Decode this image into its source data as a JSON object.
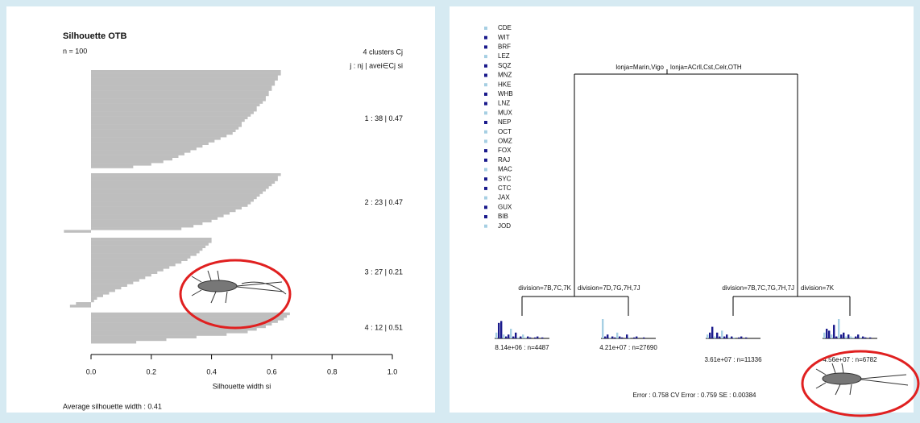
{
  "chart_data": [
    {
      "type": "silhouette",
      "title": "Silhouette OTB",
      "subtitle": "n = 100",
      "header": [
        "4  clusters  Cj",
        "j :  nj | avei∈Cj  si"
      ],
      "xlabel": "Silhouette width si",
      "footer": "Average silhouette width : 0.41",
      "color": "#bebebe",
      "xlim": [
        0,
        1
      ],
      "xticks": [
        {
          "value": 0,
          "label": "0.0"
        },
        {
          "value": 0.2,
          "label": "0.2"
        },
        {
          "value": 0.4,
          "label": "0.4"
        },
        {
          "value": 0.6,
          "label": "0.6"
        },
        {
          "value": 0.8,
          "label": "0.8"
        },
        {
          "value": 1,
          "label": "1.0"
        }
      ],
      "clusters": [
        {
          "label": "1 :  38  |  0.47",
          "values": [
            0.63,
            0.63,
            0.62,
            0.62,
            0.61,
            0.61,
            0.6,
            0.6,
            0.59,
            0.59,
            0.58,
            0.58,
            0.57,
            0.56,
            0.55,
            0.55,
            0.54,
            0.53,
            0.52,
            0.51,
            0.5,
            0.5,
            0.49,
            0.48,
            0.47,
            0.45,
            0.43,
            0.41,
            0.39,
            0.37,
            0.35,
            0.33,
            0.31,
            0.29,
            0.27,
            0.24,
            0.2,
            0.14
          ]
        },
        {
          "label": "2 :  23  |  0.47",
          "values": [
            0.63,
            0.62,
            0.62,
            0.61,
            0.6,
            0.59,
            0.58,
            0.57,
            0.56,
            0.55,
            0.54,
            0.53,
            0.52,
            0.5,
            0.48,
            0.46,
            0.44,
            0.42,
            0.4,
            0.37,
            0.34,
            0.3,
            -0.09
          ]
        },
        {
          "label": "3 :  27  |  0.21",
          "values": [
            0.4,
            0.4,
            0.39,
            0.38,
            0.37,
            0.36,
            0.35,
            0.33,
            0.32,
            0.3,
            0.28,
            0.26,
            0.24,
            0.22,
            0.2,
            0.18,
            0.16,
            0.14,
            0.12,
            0.1,
            0.08,
            0.06,
            0.04,
            0.02,
            0.01,
            -0.05,
            -0.07
          ]
        },
        {
          "label": "4 :  12  |  0.51",
          "values": [
            0.66,
            0.65,
            0.64,
            0.62,
            0.6,
            0.58,
            0.55,
            0.52,
            0.45,
            0.35,
            0.25,
            0.15
          ]
        }
      ]
    },
    {
      "type": "tree",
      "legend": {
        "names": [
          "CDE",
          "WIT",
          "BRF",
          "LEZ",
          "SQZ",
          "MNZ",
          "HKE",
          "WHB",
          "LNZ",
          "MUX",
          "NEP",
          "OCT",
          "OMZ",
          "FOX",
          "RAJ",
          "MAC",
          "SYC",
          "CTC",
          "JAX",
          "GUX",
          "BIB",
          "JOD"
        ],
        "colors": [
          "#a6cfe3",
          "#1a1a8c",
          "#1a1a8c",
          "#a6cfe3",
          "#1a1a8c",
          "#1a1a8c",
          "#a6cfe3",
          "#1a1a8c",
          "#1a1a8c",
          "#a6cfe3",
          "#1a1a8c",
          "#a6cfe3",
          "#a6cfe3",
          "#1a1a8c",
          "#1a1a8c",
          "#a6cfe3",
          "#1a1a8c",
          "#1a1a8c",
          "#a6cfe3",
          "#1a1a8c",
          "#1a1a8c",
          "#a6cfe3"
        ]
      },
      "root": [
        "lonja=Marin,Vigo",
        "lonja=ACrll,Cst,Celr,OTH"
      ],
      "splits": [
        [
          "division=7B,7C,7K",
          "division=7D,7G,7H,7J"
        ],
        [
          "division=7B,7C,7G,7H,7J",
          "division=7K"
        ]
      ],
      "leaves": [
        {
          "label": "8.14e+06 : n=4487",
          "values": [
            0.3,
            0.8,
            0.9,
            0.2,
            0.1,
            0.2,
            0.5,
            0.1,
            0.3,
            0.05,
            0.1,
            0.2,
            0.05,
            0.1,
            0.05,
            0,
            0.05,
            0.1,
            0,
            0.05,
            0,
            0
          ]
        },
        {
          "label": "4.21e+07 : n=27690",
          "values": [
            1,
            0.1,
            0.2,
            0.05,
            0.1,
            0.05,
            0.3,
            0.1,
            0.05,
            0,
            0.2,
            0.05,
            0,
            0.05,
            0.1,
            0,
            0,
            0.05,
            0,
            0,
            0,
            0
          ]
        },
        {
          "label": "3.61e+07 : n=11336",
          "values": [
            0.2,
            0.3,
            0.6,
            0.1,
            0.3,
            0.1,
            0.4,
            0.1,
            0.2,
            0.05,
            0.1,
            0.05,
            0,
            0.05,
            0.1,
            0,
            0.05,
            0,
            0,
            0,
            0,
            0
          ]
        },
        {
          "label": "4.56e+07 : n=6782",
          "values": [
            0.3,
            0.5,
            0.4,
            0.2,
            0.7,
            0.1,
            1,
            0.2,
            0.3,
            0.1,
            0.2,
            0.1,
            0.05,
            0.1,
            0.2,
            0.05,
            0.1,
            0.05,
            0,
            0.05,
            0,
            0
          ]
        }
      ],
      "footer": "Error :  0.758   CV Error :  0.759   SE :  0.00384"
    }
  ]
}
